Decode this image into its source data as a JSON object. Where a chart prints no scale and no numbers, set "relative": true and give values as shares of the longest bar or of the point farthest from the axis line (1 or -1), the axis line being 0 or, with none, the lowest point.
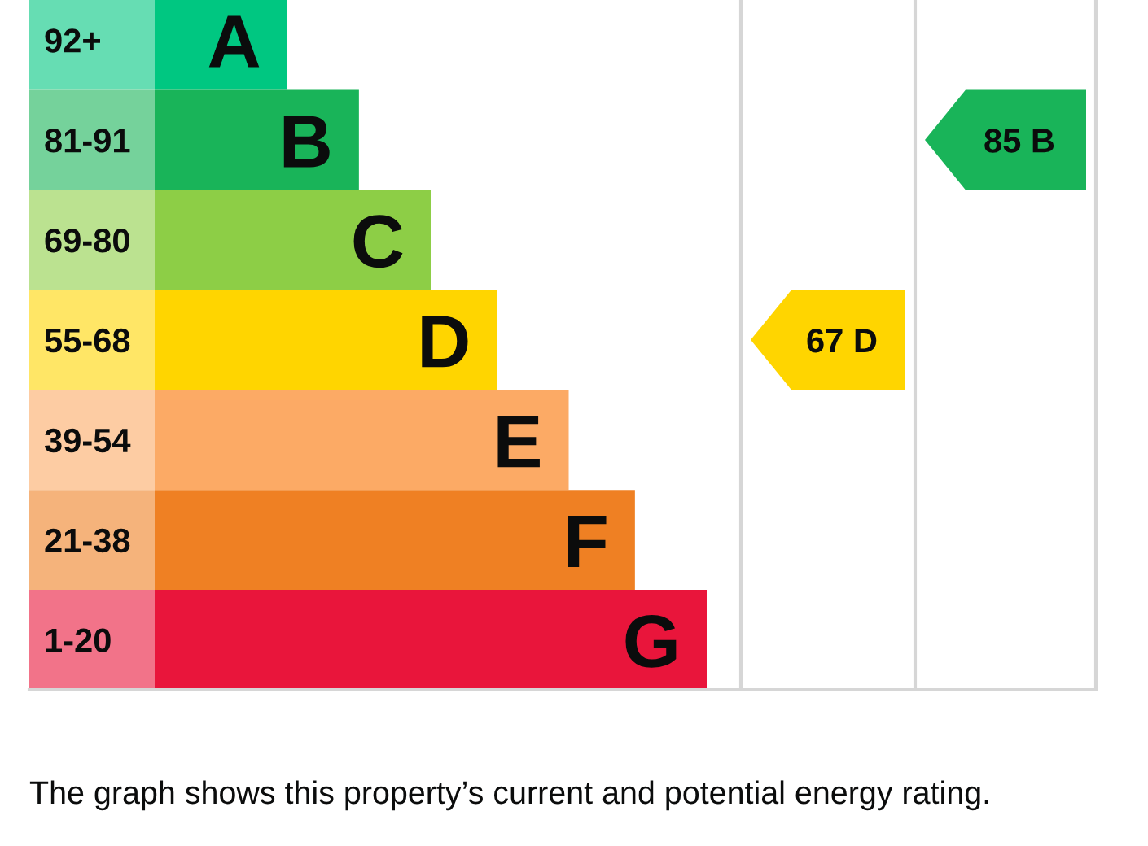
{
  "chart_data": {
    "type": "bar",
    "orientation": "horizontal",
    "relative": true,
    "categories": [
      "92+",
      "81-91",
      "69-80",
      "55-68",
      "39-54",
      "21-38",
      "1-20"
    ],
    "values": [
      0.24,
      0.37,
      0.5,
      0.62,
      0.75,
      0.87,
      1
    ],
    "colors": [
      "#00c781",
      "#19b459",
      "#8dce46",
      "#ffd500",
      "#fcaa65",
      "#ef8023",
      "#e9153b"
    ],
    "annotations": [
      {
        "text": "A",
        "x": 0.24,
        "y": "92+"
      },
      {
        "text": "B",
        "x": 0.37,
        "y": "81-91"
      },
      {
        "text": "C",
        "x": 0.5,
        "y": "69-80"
      },
      {
        "text": "D",
        "x": 0.62,
        "y": "55-68"
      },
      {
        "text": "E",
        "x": 0.75,
        "y": "39-54"
      },
      {
        "text": "F",
        "x": 0.87,
        "y": "21-38"
      },
      {
        "text": "G",
        "x": 1,
        "y": "1-20"
      },
      "67 D",
      "85 B",
      "The graph shows this property’s current and potential energy rating."
    ]
  }
}
